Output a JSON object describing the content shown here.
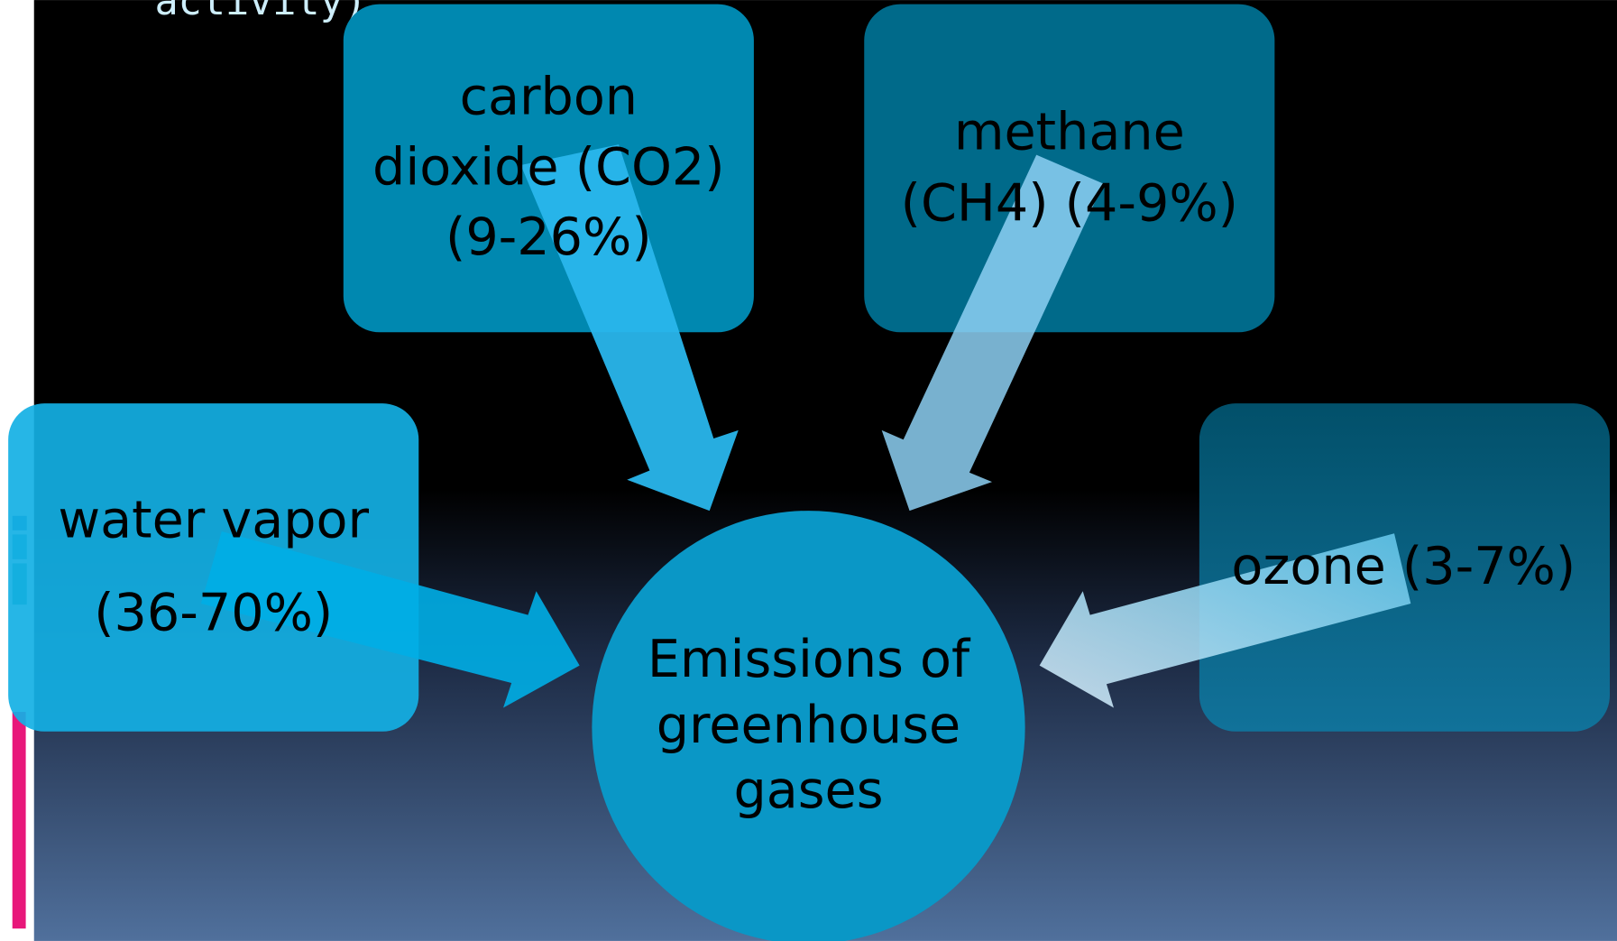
{
  "header_fragment": "activity)",
  "nodes": [
    {
      "lines": [
        "carbon",
        "dioxide (CO2)",
        "(9-26%)"
      ]
    },
    {
      "lines": [
        "methane",
        "(CH4) (4-9%)"
      ]
    },
    {
      "lines": [
        "water vapor",
        "(36-70%)"
      ]
    },
    {
      "lines": [
        "ozone (3-7%)"
      ]
    }
  ],
  "center": {
    "lines": [
      "Emissions of",
      "greenhouse",
      "gases"
    ]
  }
}
